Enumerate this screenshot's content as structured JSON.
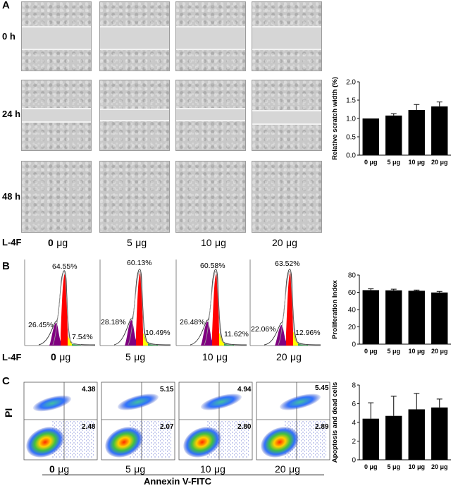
{
  "panels": {
    "a": {
      "letter": "A",
      "row_labels": [
        "0 h",
        "24 h",
        "48 h"
      ],
      "treatment_label": "L-4F",
      "doses": [
        "0",
        "5",
        "10",
        "20"
      ],
      "dose_unit": "μg"
    },
    "b": {
      "letter": "B",
      "treatment_label": "L-4F",
      "doses": [
        "0",
        "5",
        "10",
        "20"
      ],
      "dose_unit": "μg",
      "histograms": [
        {
          "peak": "64.55%",
          "left": "26.45%",
          "right": "7.54%"
        },
        {
          "peak": "60.13%",
          "left": "28.18%",
          "right": "10.49%"
        },
        {
          "peak": "60.58%",
          "left": "26.48%",
          "right": "11.62%"
        },
        {
          "peak": "63.52%",
          "left": "22.06%",
          "right": "12.96%"
        }
      ]
    },
    "c": {
      "letter": "C",
      "y_axis": "PI",
      "x_axis": "Annexin V-FITC",
      "doses": [
        "0",
        "5",
        "10",
        "20"
      ],
      "dose_unit": "μg",
      "quadrants": [
        {
          "upper_right": "4.38",
          "lower_right": "2.48"
        },
        {
          "upper_right": "5.15",
          "lower_right": "2.07"
        },
        {
          "upper_right": "4.94",
          "lower_right": "2.80"
        },
        {
          "upper_right": "5.45",
          "lower_right": "2.89"
        }
      ]
    }
  },
  "colors": {
    "bar": "#000000",
    "g1": "#800080",
    "s": "#ff0000",
    "g2": "#ffff00"
  },
  "chart_data": [
    {
      "type": "bar",
      "title": "",
      "xlabel": "",
      "ylabel": "Relative scratch width (%)",
      "categories": [
        "0 μg",
        "5 μg",
        "10 μg",
        "20 μg"
      ],
      "values": [
        1.0,
        1.08,
        1.23,
        1.33
      ],
      "errors": [
        0.0,
        0.05,
        0.15,
        0.12
      ],
      "ylim": [
        0,
        2.0
      ],
      "yticks": [
        "0.0",
        "0.5",
        "1.0",
        "1.5",
        "2.0"
      ]
    },
    {
      "type": "bar",
      "title": "",
      "xlabel": "",
      "ylabel": "Proliferation Index",
      "categories": [
        "0 μg",
        "5 μg",
        "10 μg",
        "20 μg"
      ],
      "values": [
        62.5,
        62.3,
        61.8,
        59.8
      ],
      "errors": [
        1.5,
        1.3,
        0.8,
        1.2
      ],
      "ylim": [
        0,
        80
      ],
      "yticks": [
        "0",
        "20",
        "40",
        "60",
        "80"
      ]
    },
    {
      "type": "bar",
      "title": "",
      "xlabel": "",
      "ylabel": "Apoptosis and dead cells",
      "categories": [
        "0 μg",
        "5 μg",
        "10 μg",
        "20 μg"
      ],
      "values": [
        4.4,
        4.7,
        5.4,
        5.6
      ],
      "errors": [
        1.7,
        2.1,
        1.7,
        0.9
      ],
      "ylim": [
        0,
        8
      ],
      "yticks": [
        "0",
        "2",
        "4",
        "6",
        "8"
      ]
    }
  ]
}
